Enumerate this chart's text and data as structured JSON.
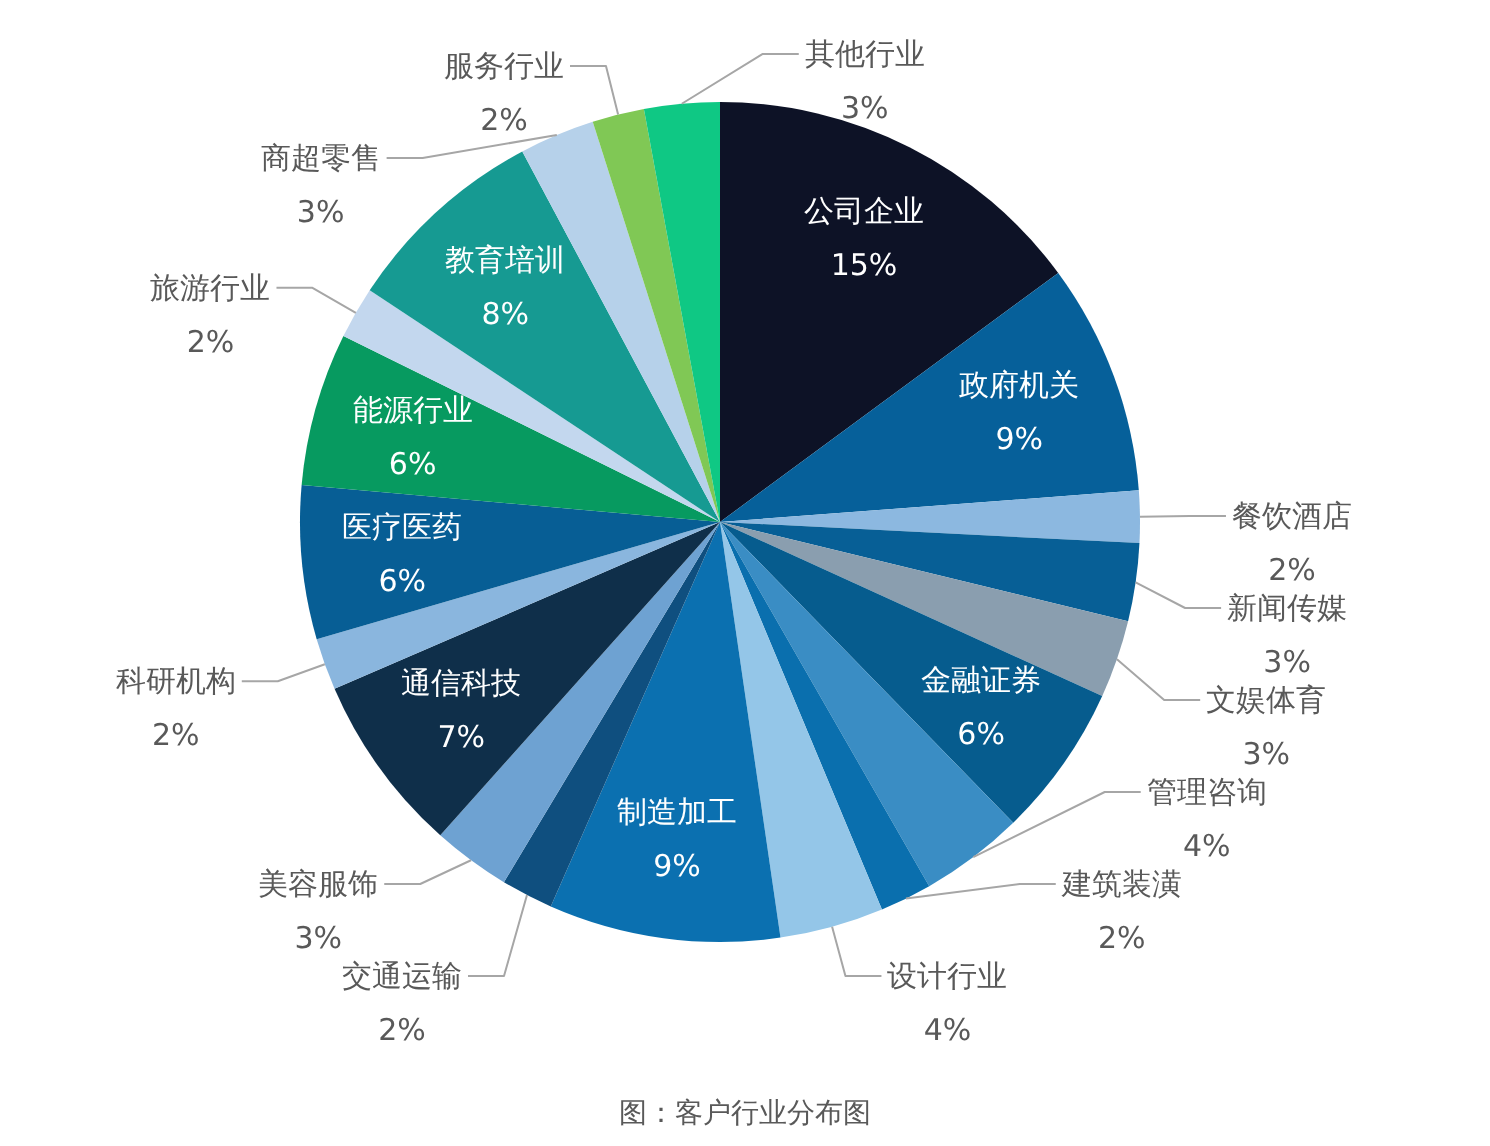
{
  "chart_data": {
    "type": "pie",
    "categories": [
      "公司企业",
      "政府机关",
      "餐饮酒店",
      "新闻传媒",
      "文娱体育",
      "金融证券",
      "管理咨询",
      "建筑装潢",
      "设计行业",
      "制造加工",
      "交通运输",
      "美容服饰",
      "通信科技",
      "科研机构",
      "医疗医药",
      "能源行业",
      "旅游行业",
      "教育培训",
      "商超零售",
      "服务行业",
      "其他行业"
    ],
    "values": [
      14.9,
      8.9,
      2.0,
      3.0,
      3.0,
      5.9,
      4.0,
      2.0,
      4.0,
      8.9,
      2.0,
      3.0,
      6.9,
      2.0,
      5.9,
      5.9,
      2.0,
      7.9,
      2.9,
      2.0,
      2.9
    ],
    "value_labels": [
      "15%",
      "9%",
      "2%",
      "3%",
      "3%",
      "6%",
      "4%",
      "2%",
      "4%",
      "9%",
      "2%",
      "3%",
      "7%",
      "2%",
      "6%",
      "6%",
      "2%",
      "8%",
      "3%",
      "2%",
      "3%"
    ],
    "colors": [
      "#0d1226",
      "#06609a",
      "#8cb8e0",
      "#075f96",
      "#8a9eaf",
      "#065c8e",
      "#3a8dc4",
      "#0a6fae",
      "#94c6e8",
      "#0b70b0",
      "#0f4f7f",
      "#6ea2d2",
      "#0f2f4a",
      "#8ab6de",
      "#075e95",
      "#079a60",
      "#c3d7ee",
      "#169a92",
      "#b6d1ea",
      "#80c855",
      "#0fc884"
    ],
    "annotations": [
      "图：客户行业分布图"
    ]
  }
}
